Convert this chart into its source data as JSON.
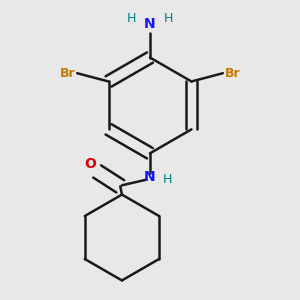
{
  "background_color": "#e8e8e8",
  "bond_color": "#1a1a1a",
  "bond_width": 1.8,
  "N_color": "#1414ff",
  "O_color": "#dd0000",
  "Br_color": "#cc7700",
  "H_color": "#008080",
  "figsize": [
    3.0,
    3.0
  ],
  "dpi": 100,
  "xlim": [
    0.05,
    0.95
  ],
  "ylim": [
    0.05,
    0.95
  ]
}
